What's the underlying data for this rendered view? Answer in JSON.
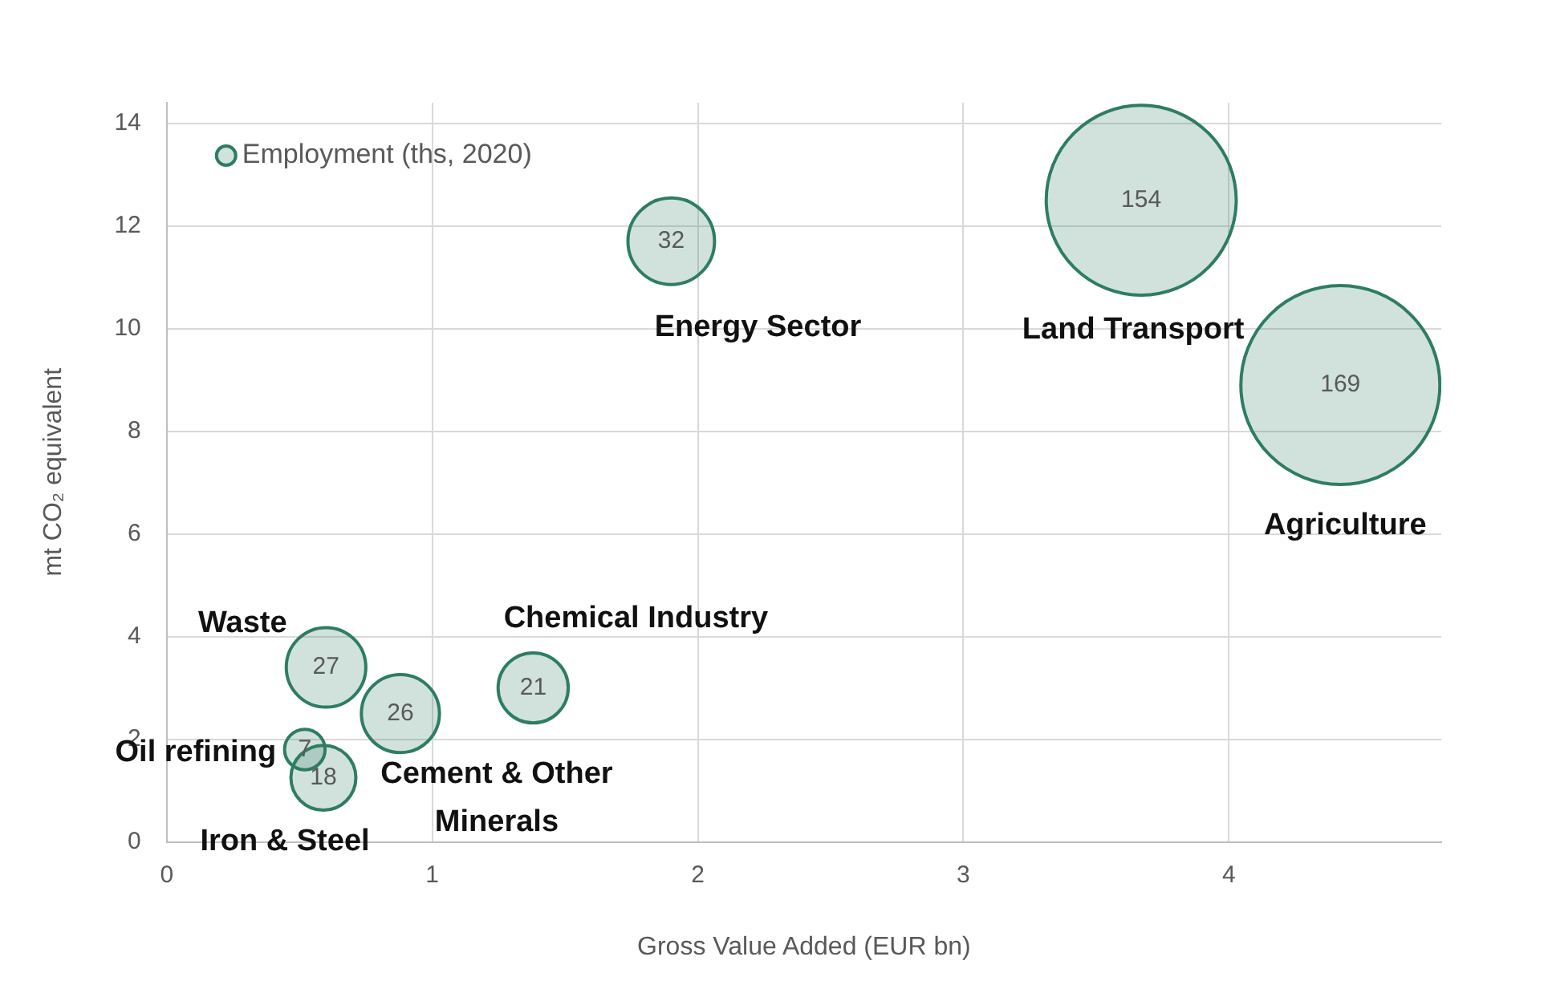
{
  "chart_data": {
    "type": "bubble",
    "xlabel": "Gross Value Added (EUR bn)",
    "ylabel": "mt CO₂ equivalent",
    "xlim": [
      0,
      4.8
    ],
    "xticks": [
      0,
      1,
      2,
      3,
      4
    ],
    "ylim": [
      0,
      14.4
    ],
    "yticks": [
      0,
      2,
      4,
      6,
      8,
      10,
      12,
      14
    ],
    "grid": true,
    "legend": "top left",
    "series": [
      {
        "name": "Employment (ths, 2020)",
        "color": "#2e7d63",
        "x": [
          1.9,
          3.67,
          4.42,
          0.6,
          1.38,
          0.88,
          0.52,
          0.59
        ],
        "values": [
          11.7,
          12.5,
          8.9,
          3.4,
          3.0,
          2.5,
          1.8,
          1.25
        ],
        "sizes": [
          32,
          154,
          169,
          27,
          21,
          26,
          7,
          18
        ],
        "value_labels": [
          "32",
          "154",
          "169",
          "27",
          "21",
          "26",
          "7",
          "18"
        ]
      }
    ],
    "annotations": [
      "Energy Sector",
      "Land Transport",
      "Agriculture",
      "Waste",
      "Chemical Industry",
      "Cement & Other Minerals",
      "Oil refining",
      "Iron & Steel"
    ]
  }
}
